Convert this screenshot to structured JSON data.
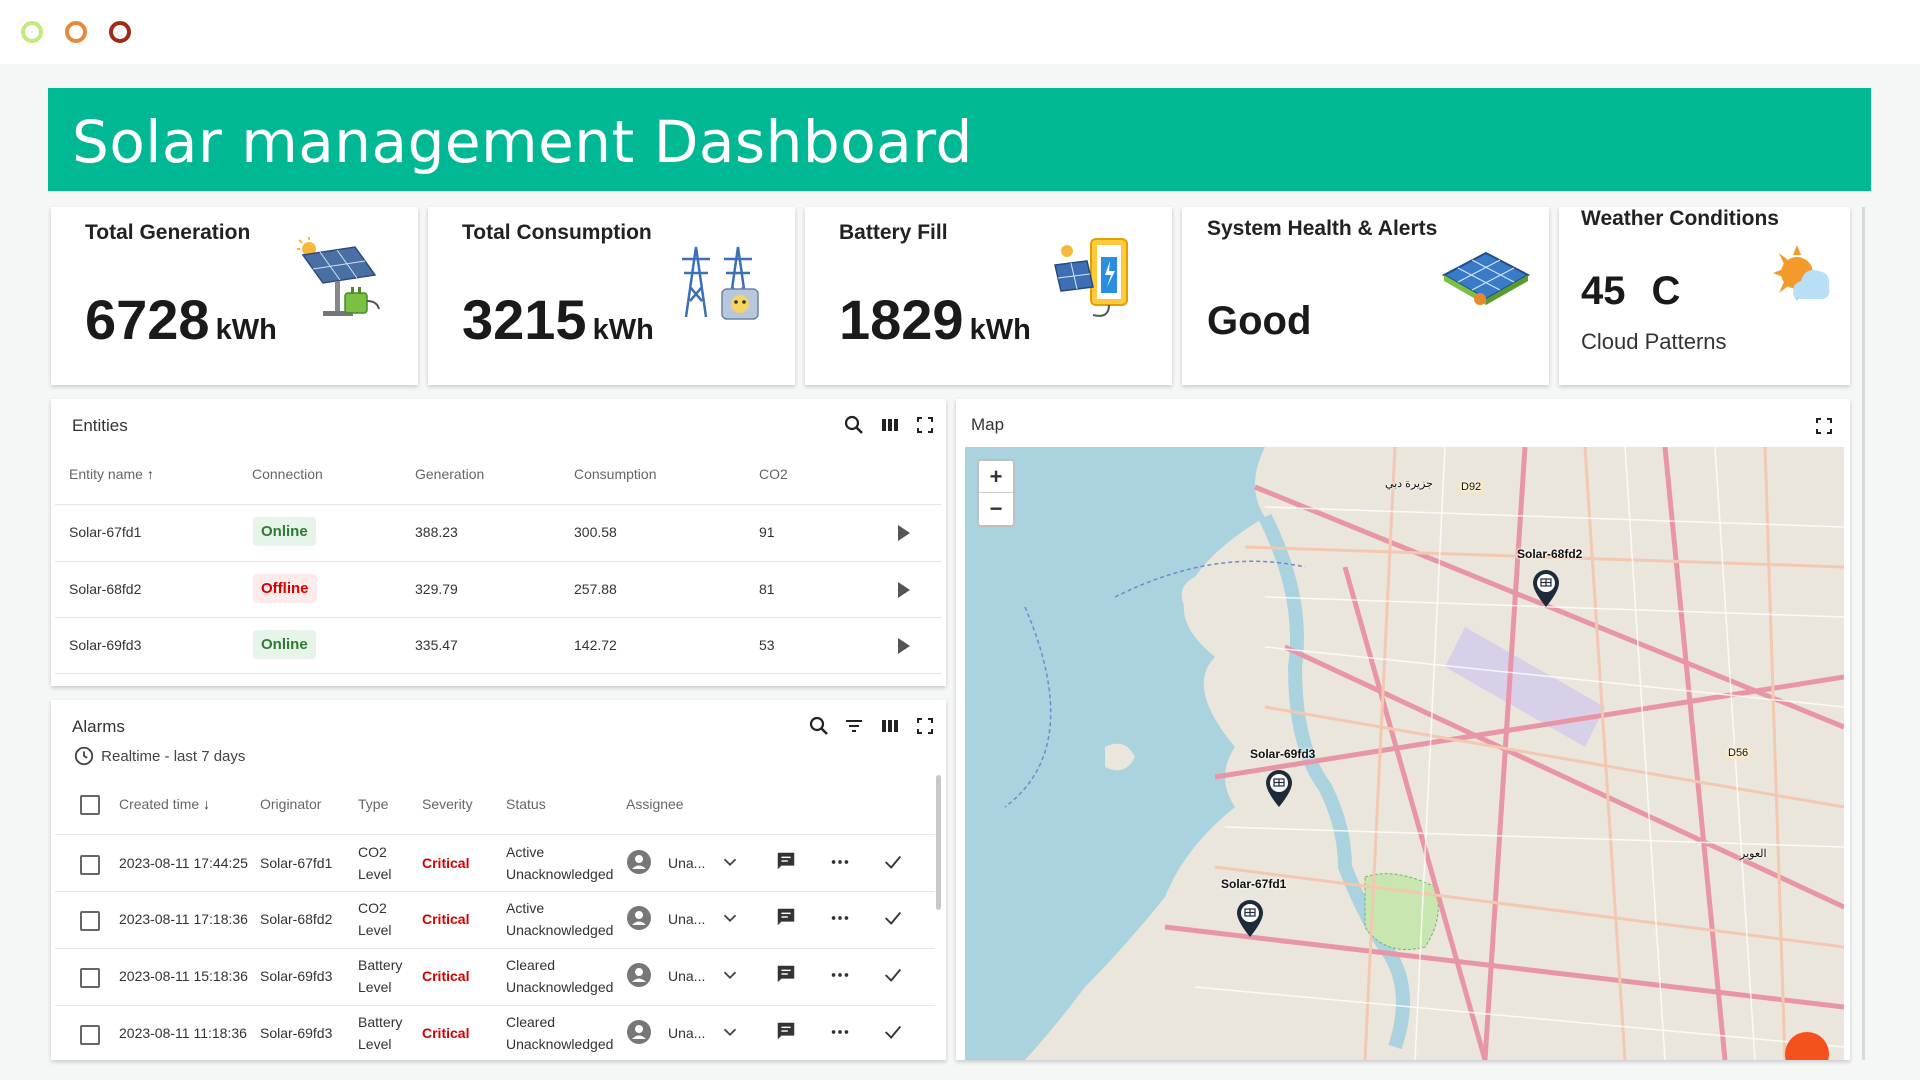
{
  "window_controls": [
    "green-circle-icon",
    "orange-circle-icon",
    "red-circle-icon"
  ],
  "colors": {
    "header": "#00b894",
    "online": "#2e7d32",
    "offline": "#d50000",
    "critical": "#d50000"
  },
  "header": {
    "title": "Solar management Dashboard"
  },
  "kpis": [
    {
      "title": "Total Generation",
      "value": "6728",
      "unit": "kWh",
      "icon": "solar-panel-charger-icon"
    },
    {
      "title": "Total Consumption",
      "value": "3215",
      "unit": "kWh",
      "icon": "power-tower-icon"
    },
    {
      "title": "Battery Fill",
      "value": "1829",
      "unit": "kWh",
      "icon": "battery-solar-icon"
    },
    {
      "title": "System Health & Alerts",
      "value": "Good",
      "icon": "solar-array-alert-icon"
    },
    {
      "title": "Weather Conditions",
      "value": "45",
      "unit": "C",
      "sub": "Cloud Patterns",
      "icon": "sun-cloud-icon"
    }
  ],
  "entities": {
    "title": "Entities",
    "columns": [
      "Entity name",
      "Connection",
      "Generation",
      "Consumption",
      "CO2"
    ],
    "sort_icon": "arrow-up-icon",
    "rows": [
      {
        "name": "Solar-67fd1",
        "connection": "Online",
        "generation": "388.23",
        "consumption": "300.58",
        "co2": "91"
      },
      {
        "name": "Solar-68fd2",
        "connection": "Offline",
        "generation": "329.79",
        "consumption": "257.88",
        "co2": "81"
      },
      {
        "name": "Solar-69fd3",
        "connection": "Online",
        "generation": "335.47",
        "consumption": "142.72",
        "co2": "53"
      }
    ]
  },
  "alarms": {
    "title": "Alarms",
    "timewindow": "Realtime - last 7 days",
    "columns": [
      "Created time",
      "Originator",
      "Type",
      "Severity",
      "Status",
      "Assignee"
    ],
    "rows": [
      {
        "time": "2023-08-11 17:44:25",
        "originator": "Solar-67fd1",
        "type": [
          "CO2",
          "Level"
        ],
        "severity": "Critical",
        "status": [
          "Active",
          "Unacknowledged"
        ],
        "assignee": "Una..."
      },
      {
        "time": "2023-08-11 17:18:36",
        "originator": "Solar-68fd2",
        "type": [
          "CO2",
          "Level"
        ],
        "severity": "Critical",
        "status": [
          "Active",
          "Unacknowledged"
        ],
        "assignee": "Una..."
      },
      {
        "time": "2023-08-11 15:18:36",
        "originator": "Solar-69fd3",
        "type": [
          "Battery",
          "Level"
        ],
        "severity": "Critical",
        "status": [
          "Cleared",
          "Unacknowledged"
        ],
        "assignee": "Una..."
      },
      {
        "time": "2023-08-11 11:18:36",
        "originator": "Solar-69fd3",
        "type": [
          "Battery",
          "Level"
        ],
        "severity": "Critical",
        "status": [
          "Cleared",
          "Unacknowledged"
        ],
        "assignee": "Una..."
      }
    ]
  },
  "map": {
    "title": "Map",
    "zoom_in": "+",
    "zoom_out": "−",
    "markers": [
      "Solar-68fd2",
      "Solar-69fd3",
      "Solar-67fd1"
    ],
    "places": [
      "D92",
      "D56",
      "جزيرة دبي",
      "العوير"
    ]
  }
}
